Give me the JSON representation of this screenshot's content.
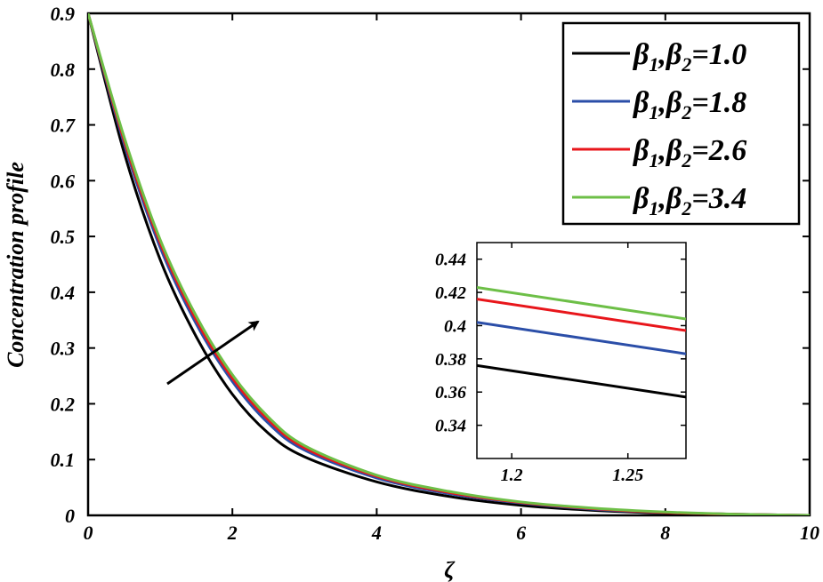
{
  "chart_data": [
    {
      "type": "line",
      "xlabel": "ζ",
      "ylabel": "Concentration profile",
      "xlim": [
        0,
        10
      ],
      "ylim": [
        0,
        0.9
      ],
      "xticks": [
        "0",
        "2",
        "4",
        "6",
        "8",
        "10"
      ],
      "yticks": [
        "0",
        "0.1",
        "0.2",
        "0.3",
        "0.4",
        "0.5",
        "0.6",
        "0.7",
        "0.8",
        "0.9"
      ],
      "grid": false,
      "legend_position": "top-right",
      "x": [
        0,
        0.5,
        1,
        1.5,
        2,
        2.5,
        3,
        4,
        5,
        6,
        7,
        8,
        9,
        10
      ],
      "series": [
        {
          "name": "β1, β2=1.0",
          "color": "#000000",
          "values": [
            0.9,
            0.65,
            0.458,
            0.32,
            0.217,
            0.147,
            0.105,
            0.06,
            0.034,
            0.018,
            0.009,
            0.004,
            0.001,
            0.0
          ]
        },
        {
          "name": "β1, β2=1.8",
          "color": "#2b4ea8",
          "values": [
            0.9,
            0.666,
            0.48,
            0.343,
            0.24,
            0.165,
            0.117,
            0.067,
            0.039,
            0.022,
            0.011,
            0.005,
            0.002,
            0.0
          ]
        },
        {
          "name": "β1, β2=2.6",
          "color": "#e8161b",
          "values": [
            0.9,
            0.672,
            0.488,
            0.35,
            0.246,
            0.171,
            0.121,
            0.07,
            0.041,
            0.023,
            0.012,
            0.005,
            0.002,
            0.0
          ]
        },
        {
          "name": "β1, β2=3.4",
          "color": "#6dbf47",
          "values": [
            0.9,
            0.678,
            0.494,
            0.357,
            0.252,
            0.176,
            0.125,
            0.072,
            0.043,
            0.024,
            0.013,
            0.006,
            0.002,
            0.0
          ]
        }
      ]
    },
    {
      "type": "line",
      "xlim": [
        1.185,
        1.275
      ],
      "ylim": [
        0.32,
        0.45
      ],
      "xticks": [
        "1.2",
        "1.25"
      ],
      "yticks": [
        "0.34",
        "0.36",
        "0.38",
        "0.4",
        "0.42",
        "0.44"
      ],
      "grid": false,
      "x": [
        1.185,
        1.275
      ],
      "series": [
        {
          "color": "#000000",
          "values": [
            0.376,
            0.357
          ]
        },
        {
          "color": "#2b4ea8",
          "values": [
            0.402,
            0.383
          ]
        },
        {
          "color": "#e8161b",
          "values": [
            0.416,
            0.397
          ]
        },
        {
          "color": "#6dbf47",
          "values": [
            0.423,
            0.404
          ]
        }
      ]
    }
  ],
  "legend": {
    "entries": [
      {
        "beta1": "β",
        "sub1": "1",
        "sep": ",",
        "beta2": "β",
        "sub2": "2",
        "value": "=1.0",
        "color": "#000000"
      },
      {
        "beta1": "β",
        "sub1": "1",
        "sep": ",",
        "beta2": "β",
        "sub2": "2",
        "value": "=1.8",
        "color": "#2b4ea8"
      },
      {
        "beta1": "β",
        "sub1": "1",
        "sep": ",",
        "beta2": "β",
        "sub2": "2",
        "value": "=2.6",
        "color": "#e8161b"
      },
      {
        "beta1": "β",
        "sub1": "1",
        "sep": ",",
        "beta2": "β",
        "sub2": "2",
        "value": "=3.4",
        "color": "#6dbf47"
      }
    ]
  },
  "annotation": {
    "arrow": "increasing β1, β2"
  }
}
